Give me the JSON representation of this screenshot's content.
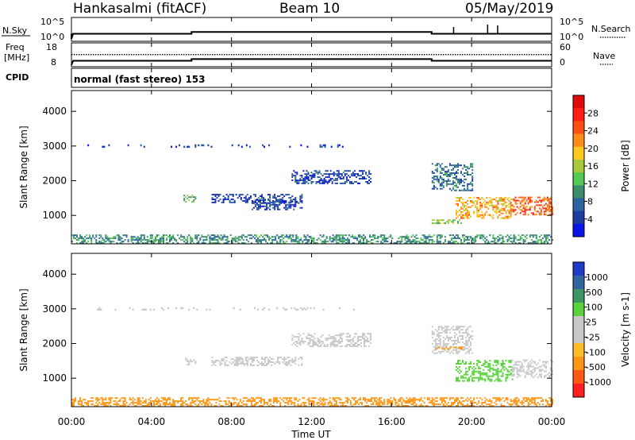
{
  "header": {
    "station": "Hankasalmi (fitACF)",
    "beam": "Beam 10",
    "date": "05/May/2019"
  },
  "panels": {
    "nsky": {
      "left_label": "N.Sky",
      "left_ticks": [
        "10^5",
        "10^0"
      ],
      "right_ticks": [
        "10^5",
        "10^0"
      ],
      "right_label": "N.Search"
    },
    "freq": {
      "left_label_line1": "Freq",
      "left_label_line2": "[MHz]",
      "left_ticks": [
        "18",
        "8"
      ],
      "right_ticks": [
        "60",
        "0"
      ],
      "right_label": "Nave"
    },
    "cpid": {
      "label": "CPID",
      "text": "normal (fast stereo) 153"
    }
  },
  "colors": {
    "power_scale": [
      "#0a14e6",
      "#1e3ca0",
      "#2d64a0",
      "#3c8c6e",
      "#55c855",
      "#aac83c",
      "#ffc81e",
      "#ff8c14",
      "#ff5014",
      "#ff1e14",
      "#e10a0a"
    ],
    "velocity_scale": [
      "#ff1e1e",
      "#ff5a14",
      "#ff9614",
      "#ffbe28",
      "#c8c8c8",
      "#c8c8c8",
      "#5ad23c",
      "#3c9664",
      "#3264a0",
      "#1e3cc8"
    ],
    "ground_scatter": "#b4b4b4"
  },
  "chart_data": [
    {
      "type": "line",
      "name": "nsky-nsearch",
      "ylabel": "N.Sky",
      "y2label": "N.Search",
      "yscale": "log",
      "series": [
        {
          "name": "N.Sky",
          "x": [
            "00:00",
            "00:05",
            "06:00",
            "06:00",
            "18:00",
            "18:00",
            "24:00"
          ],
          "y": [
            1,
            30,
            30,
            100,
            100,
            30,
            30
          ]
        }
      ]
    },
    {
      "type": "line",
      "name": "freq-nave",
      "ylabel": "Freq [MHz]",
      "y2label": "Nave",
      "ylim": [
        8,
        18
      ],
      "y2lim": [
        0,
        60
      ],
      "series": [
        {
          "name": "Freq",
          "x": [
            "00:00",
            "00:05",
            "06:00",
            "06:00",
            "18:00",
            "18:00",
            "24:00"
          ],
          "y": [
            8.5,
            10.5,
            10.5,
            11.3,
            11.3,
            10.5,
            10.5
          ]
        },
        {
          "name": "Nave",
          "x": [
            "00:00",
            "24:00"
          ],
          "y": [
            33,
            33
          ]
        }
      ]
    },
    {
      "type": "heatmap",
      "name": "power",
      "xlabel": "Time UT",
      "ylabel": "Slant Range [km]",
      "xticks": [
        "00:00",
        "04:00",
        "08:00",
        "12:00",
        "16:00",
        "20:00",
        "00:00"
      ],
      "xlim": [
        0,
        24
      ],
      "ylim": [
        180,
        4600
      ],
      "yticks": [
        1000,
        2000,
        3000,
        4000
      ],
      "colorbar": {
        "label": "Power [dB]",
        "ticks": [
          4,
          8,
          12,
          16,
          20,
          24,
          28
        ],
        "range": [
          0,
          32
        ]
      },
      "regions": [
        {
          "t": [
            0,
            24
          ],
          "r": [
            180,
            420
          ],
          "value": 10,
          "kind": "noise"
        },
        {
          "t": [
            0.8,
            14.7
          ],
          "r": [
            2960,
            3020
          ],
          "value": 4,
          "kind": "sparse"
        },
        {
          "t": [
            5.6,
            6.2
          ],
          "r": [
            1370,
            1560
          ],
          "value": 12
        },
        {
          "t": [
            7.0,
            11.5
          ],
          "r": [
            1350,
            1600
          ],
          "value": 5
        },
        {
          "t": [
            9.0,
            11.5
          ],
          "r": [
            1150,
            1450
          ],
          "value": 5
        },
        {
          "t": [
            11.0,
            15.0
          ],
          "r": [
            1900,
            2300
          ],
          "value": 5
        },
        {
          "t": [
            18.0,
            20.0
          ],
          "r": [
            1700,
            2500
          ],
          "value": 8
        },
        {
          "t": [
            18.0,
            19.5
          ],
          "r": [
            750,
            860
          ],
          "value": 14
        },
        {
          "t": [
            19.2,
            22.0
          ],
          "r": [
            900,
            1500
          ],
          "value": 20
        },
        {
          "t": [
            22.0,
            24.0
          ],
          "r": [
            1000,
            1500
          ],
          "value": 24
        }
      ]
    },
    {
      "type": "heatmap",
      "name": "velocity",
      "xlabel": "Time UT",
      "ylabel": "Slant Range [km]",
      "xticks": [
        "00:00",
        "04:00",
        "08:00",
        "12:00",
        "16:00",
        "20:00",
        "00:00"
      ],
      "xlim": [
        0,
        24
      ],
      "ylim": [
        180,
        4600
      ],
      "yticks": [
        1000,
        2000,
        3000,
        4000
      ],
      "colorbar": {
        "label": "Velocity [m s-1]",
        "ticks": [
          1000,
          500,
          100,
          25,
          -25,
          -100,
          -500,
          -1000
        ]
      },
      "regions": [
        {
          "t": [
            0,
            24
          ],
          "r": [
            180,
            420
          ],
          "value": -200,
          "kind": "noise"
        },
        {
          "t": [
            0.8,
            14.7
          ],
          "r": [
            2960,
            3020
          ],
          "value": 0,
          "kind": "sparse"
        },
        {
          "t": [
            5.6,
            6.2
          ],
          "r": [
            1370,
            1560
          ],
          "value": 0
        },
        {
          "t": [
            7.0,
            11.5
          ],
          "r": [
            1350,
            1600
          ],
          "value": 0
        },
        {
          "t": [
            11.0,
            15.0
          ],
          "r": [
            1900,
            2300
          ],
          "value": 0
        },
        {
          "t": [
            18.0,
            20.0
          ],
          "r": [
            1700,
            2500
          ],
          "value": 0
        },
        {
          "t": [
            18.2,
            19.6
          ],
          "r": [
            1820,
            1900
          ],
          "value": -300
        },
        {
          "t": [
            19.2,
            22.0
          ],
          "r": [
            900,
            1500
          ],
          "value": 150
        },
        {
          "t": [
            22.0,
            24.0
          ],
          "r": [
            1000,
            1500
          ],
          "value": 80
        }
      ]
    }
  ]
}
